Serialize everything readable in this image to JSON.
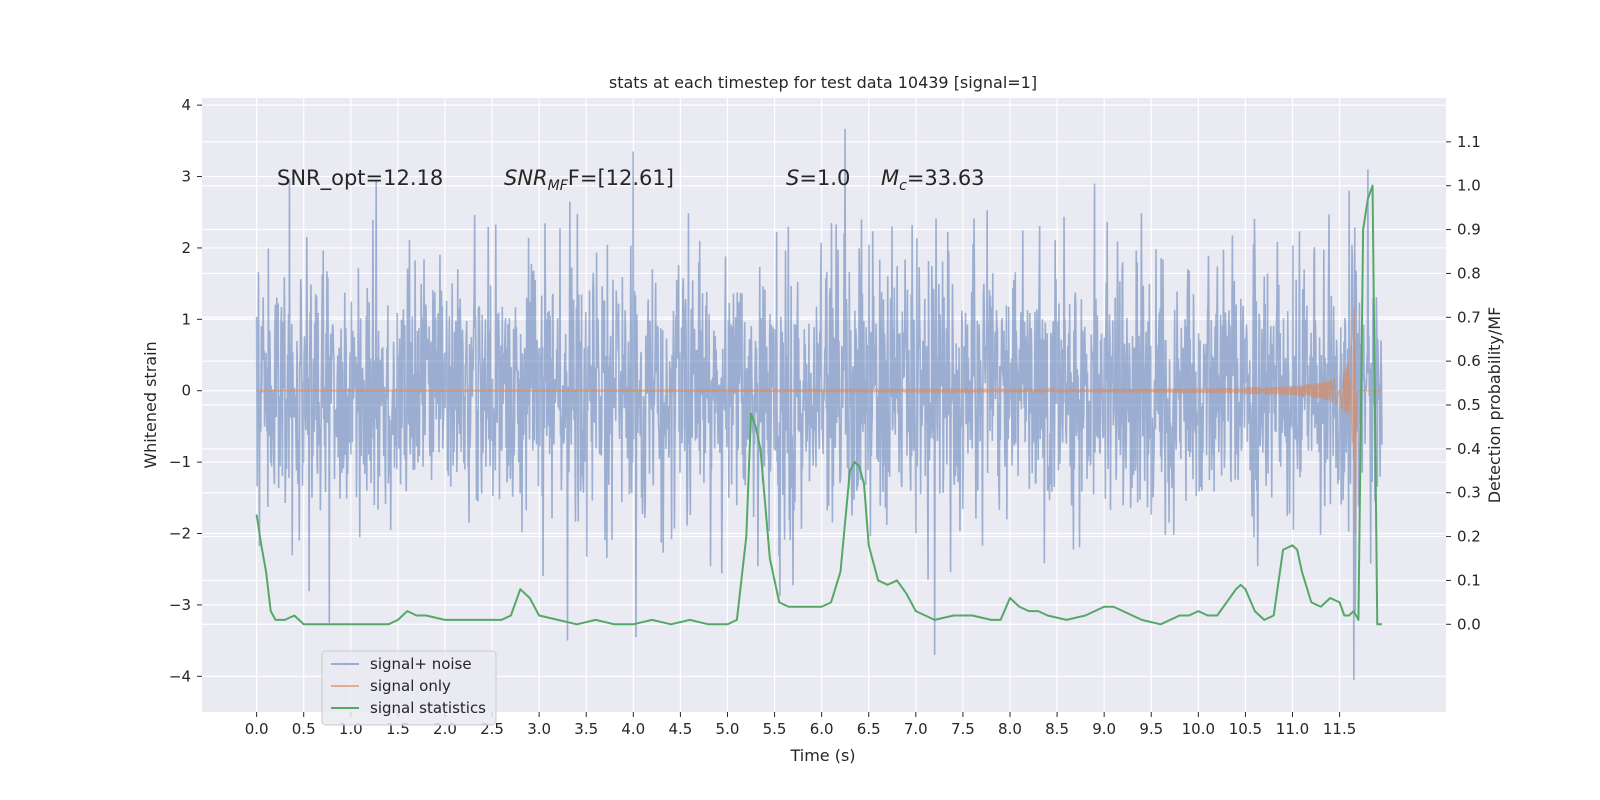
{
  "chart_data": {
    "type": "line",
    "title": "stats at each timestep for test data 10439 [signal=1]",
    "xlabel": "Time (s)",
    "ylabel_left": "Whitened strain",
    "ylabel_right": "Detection probability/MF",
    "xlim": [
      -0.58,
      12.63
    ],
    "ylim_left": [
      -4.5,
      4.1
    ],
    "ylim_right": [
      -0.2,
      1.2
    ],
    "x_ticks": [
      0.0,
      0.5,
      1.0,
      1.5,
      2.0,
      2.5,
      3.0,
      3.5,
      4.0,
      4.5,
      5.0,
      5.5,
      6.0,
      6.5,
      7.0,
      7.5,
      8.0,
      8.5,
      9.0,
      9.5,
      10.0,
      10.5,
      11.0,
      11.5
    ],
    "x_tick_labels": [
      "0.0",
      "0.5",
      "1.0",
      "1.5",
      "2.0",
      "2.5",
      "3.0",
      "3.5",
      "4.0",
      "4.5",
      "5.0",
      "5.5",
      "6.0",
      "6.5",
      "7.0",
      "7.5",
      "8.0",
      "8.5",
      "9.0",
      "9.5",
      "10.0",
      "10.5",
      "11.0",
      "11.5"
    ],
    "y_ticks_left": [
      -4,
      -3,
      -2,
      -1,
      0,
      1,
      2,
      3,
      4
    ],
    "y_tick_labels_left": [
      "−4",
      "−3",
      "−2",
      "−1",
      "0",
      "1",
      "2",
      "3",
      "4"
    ],
    "y_ticks_right": [
      0.0,
      0.1,
      0.2,
      0.3,
      0.4,
      0.5,
      0.6,
      0.7,
      0.8,
      0.9,
      1.0,
      1.1
    ],
    "y_tick_labels_right": [
      "0.0",
      "0.1",
      "0.2",
      "0.3",
      "0.4",
      "0.5",
      "0.6",
      "0.7",
      "0.8",
      "0.9",
      "1.0",
      "1.1"
    ],
    "grid": true,
    "background": "#eaeaf2",
    "legend_position": "lower-left",
    "annotations": {
      "snr_opt": "SNR_opt=12.18",
      "snr_mf_main": "SNR",
      "snr_mf_sub": "MF",
      "snr_mf_value": "F=[12.61]",
      "s_symbol": "S",
      "s_value": "=1.0",
      "mc_symbol": "M",
      "mc_sub": "c",
      "mc_value": "=33.63"
    },
    "series": [
      {
        "name": "signal+ noise",
        "axis": "left",
        "color": "#4c72b0",
        "opacity": 0.5,
        "description_range": [
          -4.05,
          3.67
        ],
        "x_range": [
          0.0,
          11.95
        ],
        "spikes": [
          [
            0.35,
            2.97
          ],
          [
            0.77,
            -3.25
          ],
          [
            1.27,
            2.96
          ],
          [
            3.3,
            -3.5
          ],
          [
            4.0,
            3.35
          ],
          [
            4.03,
            -3.45
          ],
          [
            6.25,
            3.67
          ],
          [
            7.2,
            -3.7
          ],
          [
            8.9,
            2.9
          ],
          [
            11.65,
            -4.05
          ],
          [
            11.8,
            3.1
          ],
          [
            11.6,
            2.8
          ]
        ]
      },
      {
        "name": "signal only",
        "axis": "left",
        "color": "#dd8452",
        "opacity": 0.6,
        "x_range": [
          0.0,
          11.95
        ],
        "merger_time": 11.67,
        "peak_amplitude": 2.85
      },
      {
        "name": "signal statistics",
        "axis": "right",
        "color": "#55a868",
        "x": [
          0.0,
          0.05,
          0.1,
          0.15,
          0.2,
          0.25,
          0.3,
          0.4,
          0.5,
          0.6,
          0.7,
          0.8,
          1.0,
          1.2,
          1.4,
          1.5,
          1.6,
          1.7,
          1.8,
          2.0,
          2.2,
          2.4,
          2.6,
          2.7,
          2.8,
          2.9,
          3.0,
          3.2,
          3.4,
          3.6,
          3.8,
          4.0,
          4.2,
          4.4,
          4.6,
          4.8,
          5.0,
          5.1,
          5.2,
          5.25,
          5.3,
          5.35,
          5.45,
          5.55,
          5.65,
          5.8,
          6.0,
          6.1,
          6.2,
          6.3,
          6.35,
          6.4,
          6.45,
          6.5,
          6.6,
          6.7,
          6.8,
          6.9,
          7.0,
          7.2,
          7.4,
          7.6,
          7.8,
          7.9,
          8.0,
          8.1,
          8.2,
          8.3,
          8.4,
          8.6,
          8.8,
          9.0,
          9.1,
          9.2,
          9.4,
          9.6,
          9.8,
          9.9,
          10.0,
          10.1,
          10.2,
          10.3,
          10.4,
          10.45,
          10.5,
          10.6,
          10.7,
          10.8,
          10.9,
          11.0,
          11.05,
          11.1,
          11.2,
          11.3,
          11.4,
          11.5,
          11.55,
          11.6,
          11.65,
          11.7,
          11.75,
          11.8,
          11.85,
          11.9,
          11.95
        ],
        "values": [
          0.25,
          0.18,
          0.12,
          0.03,
          0.01,
          0.01,
          0.01,
          0.02,
          0.0,
          0.0,
          0.0,
          0.0,
          0.0,
          0.0,
          0.0,
          0.01,
          0.03,
          0.02,
          0.02,
          0.01,
          0.01,
          0.01,
          0.01,
          0.02,
          0.08,
          0.06,
          0.02,
          0.01,
          0.0,
          0.01,
          0.0,
          0.0,
          0.01,
          0.0,
          0.01,
          0.0,
          0.0,
          0.01,
          0.2,
          0.48,
          0.45,
          0.4,
          0.15,
          0.05,
          0.04,
          0.04,
          0.04,
          0.05,
          0.12,
          0.35,
          0.37,
          0.36,
          0.32,
          0.18,
          0.1,
          0.09,
          0.1,
          0.07,
          0.03,
          0.01,
          0.02,
          0.02,
          0.01,
          0.01,
          0.06,
          0.04,
          0.03,
          0.03,
          0.02,
          0.01,
          0.02,
          0.04,
          0.04,
          0.03,
          0.01,
          0.0,
          0.02,
          0.02,
          0.03,
          0.02,
          0.02,
          0.05,
          0.08,
          0.09,
          0.08,
          0.03,
          0.01,
          0.02,
          0.17,
          0.18,
          0.17,
          0.12,
          0.05,
          0.04,
          0.06,
          0.05,
          0.02,
          0.02,
          0.03,
          0.01,
          0.9,
          0.97,
          1.0,
          0.0,
          0.0
        ]
      }
    ]
  }
}
